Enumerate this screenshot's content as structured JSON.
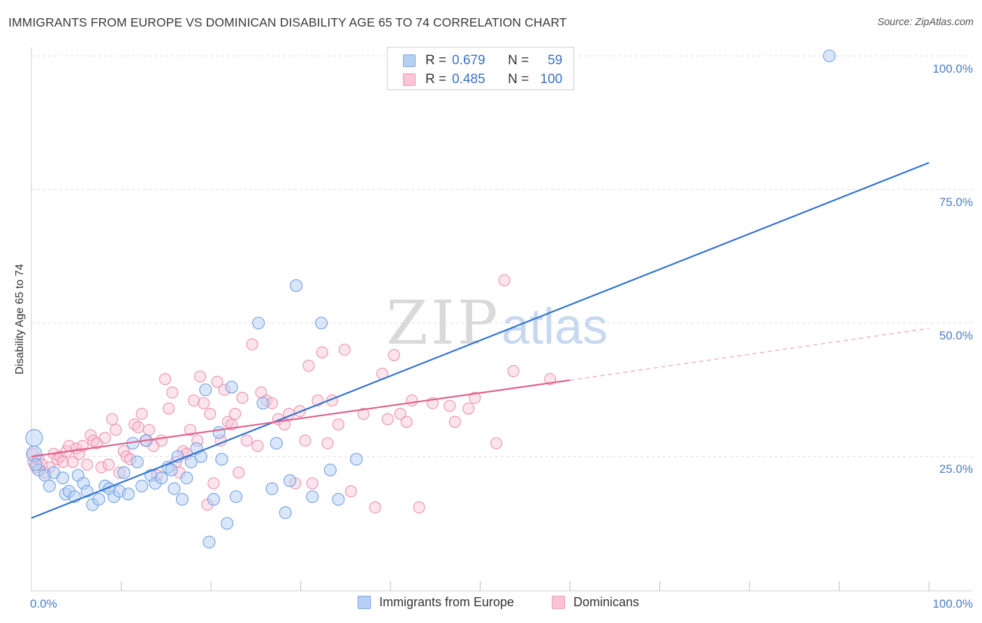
{
  "header": {
    "title": "IMMIGRANTS FROM EUROPE VS DOMINICAN DISABILITY AGE 65 TO 74 CORRELATION CHART",
    "source": "Source: ZipAtlas.com"
  },
  "legend": {
    "r_label": "R =",
    "n_label": "N =",
    "rows": [
      {
        "r": "0.679",
        "n": "59",
        "fill": "#b6d0f5",
        "stroke": "#7aa6e3"
      },
      {
        "r": "0.485",
        "n": "100",
        "fill": "#f9c4d4",
        "stroke": "#ee9ab4"
      }
    ]
  },
  "bottom_legend": [
    "Immigrants from Europe",
    "Dominicans"
  ],
  "watermark": {
    "zip": "ZIP",
    "atlas": "atlas"
  },
  "chart_data": {
    "type": "scatter",
    "title": "IMMIGRANTS FROM EUROPE VS DOMINICAN DISABILITY AGE 65 TO 74 CORRELATION CHART",
    "xlabel": "",
    "ylabel": "Disability Age 65 to 74",
    "xlim": [
      0,
      100
    ],
    "ylim": [
      0,
      100
    ],
    "x_tick_labels": [
      "0.0%",
      "100.0%"
    ],
    "y_tick_labels": [
      "25.0%",
      "50.0%",
      "75.0%",
      "100.0%"
    ],
    "grid": true,
    "colors": {
      "europe_fill": "#b6d0f5",
      "europe_stroke": "#6f9fe0",
      "europe_line": "#2f72d0",
      "dominican_fill": "#f9c4d4",
      "dominican_stroke": "#ec8fae",
      "dominican_line": "#e0608d"
    },
    "series": [
      {
        "name": "Immigrants from Europe",
        "r": 0.679,
        "n": 59,
        "trend": {
          "x0": 0,
          "y0": 13.5,
          "x1": 100,
          "y1": 80
        },
        "points": [
          [
            0.3,
            28.5
          ],
          [
            0.3,
            25.5
          ],
          [
            0.8,
            22.5
          ],
          [
            1.5,
            21.5
          ],
          [
            2,
            19.5
          ],
          [
            2.5,
            22
          ],
          [
            3.5,
            21
          ],
          [
            3.8,
            18
          ],
          [
            4.2,
            18.5
          ],
          [
            4.8,
            17.5
          ],
          [
            5.2,
            21.5
          ],
          [
            5.8,
            20
          ],
          [
            6.2,
            18.5
          ],
          [
            6.8,
            16
          ],
          [
            7.5,
            17
          ],
          [
            8.2,
            19.5
          ],
          [
            8.7,
            19
          ],
          [
            9.2,
            17.5
          ],
          [
            9.8,
            18.5
          ],
          [
            10.3,
            22
          ],
          [
            10.8,
            18
          ],
          [
            11.3,
            27.5
          ],
          [
            11.8,
            24
          ],
          [
            12.3,
            19.5
          ],
          [
            12.8,
            28
          ],
          [
            13.3,
            21.5
          ],
          [
            13.8,
            20
          ],
          [
            14.5,
            21
          ],
          [
            15.2,
            23
          ],
          [
            15.6,
            22.5
          ],
          [
            15.9,
            19
          ],
          [
            16.3,
            25
          ],
          [
            16.8,
            17
          ],
          [
            17.3,
            21
          ],
          [
            17.8,
            24
          ],
          [
            18.4,
            26.5
          ],
          [
            18.9,
            25
          ],
          [
            19.4,
            37.5
          ],
          [
            19.8,
            9
          ],
          [
            20.3,
            17
          ],
          [
            20.9,
            29.5
          ],
          [
            21.2,
            24.5
          ],
          [
            21.8,
            12.5
          ],
          [
            22.3,
            38
          ],
          [
            22.8,
            17.5
          ],
          [
            25.3,
            50
          ],
          [
            25.8,
            35
          ],
          [
            26.8,
            19
          ],
          [
            27.3,
            27.5
          ],
          [
            28.3,
            14.5
          ],
          [
            28.8,
            20.5
          ],
          [
            29.5,
            57
          ],
          [
            31.3,
            17.5
          ],
          [
            32.3,
            50
          ],
          [
            33.3,
            22.5
          ],
          [
            34.2,
            17
          ],
          [
            36.2,
            24.5
          ],
          [
            88.9,
            100
          ],
          [
            0.5,
            23.5
          ]
        ]
      },
      {
        "name": "Dominicans",
        "r": 0.485,
        "n": 100,
        "trend": {
          "x0": 0,
          "y0": 25,
          "x1": 60,
          "y1": 39.3
        },
        "trend_extension": {
          "x0": 60,
          "y0": 39.3,
          "x1": 100,
          "y1": 49
        },
        "points": [
          [
            0.2,
            25.5
          ],
          [
            0.2,
            24
          ],
          [
            0.5,
            23
          ],
          [
            0.8,
            24.5
          ],
          [
            1.2,
            23.5
          ],
          [
            1.5,
            22
          ],
          [
            2,
            23
          ],
          [
            2.5,
            25.5
          ],
          [
            2.9,
            24.5
          ],
          [
            3.2,
            25
          ],
          [
            3.5,
            24
          ],
          [
            3.9,
            26
          ],
          [
            4.2,
            27
          ],
          [
            4.6,
            24
          ],
          [
            5,
            26.5
          ],
          [
            5.3,
            25.5
          ],
          [
            5.7,
            27
          ],
          [
            6.2,
            23.5
          ],
          [
            6.6,
            29
          ],
          [
            6.9,
            28
          ],
          [
            7.3,
            27.5
          ],
          [
            7.8,
            23
          ],
          [
            8.2,
            28.5
          ],
          [
            8.6,
            23.5
          ],
          [
            9,
            32
          ],
          [
            9.4,
            30
          ],
          [
            9.8,
            22
          ],
          [
            10.3,
            26
          ],
          [
            10.6,
            25
          ],
          [
            11,
            24.5
          ],
          [
            11.5,
            31
          ],
          [
            11.9,
            30.5
          ],
          [
            12.3,
            33
          ],
          [
            12.7,
            28
          ],
          [
            13.1,
            30
          ],
          [
            13.6,
            27
          ],
          [
            14,
            21.5
          ],
          [
            14.5,
            28
          ],
          [
            14.9,
            39.5
          ],
          [
            15.3,
            34
          ],
          [
            15.7,
            37
          ],
          [
            16.1,
            24
          ],
          [
            16.5,
            22
          ],
          [
            16.9,
            26
          ],
          [
            17.3,
            25.5
          ],
          [
            17.7,
            30
          ],
          [
            18.1,
            35.5
          ],
          [
            18.5,
            28
          ],
          [
            18.8,
            40
          ],
          [
            19.2,
            35
          ],
          [
            19.6,
            16
          ],
          [
            19.9,
            33
          ],
          [
            20.3,
            20
          ],
          [
            20.7,
            39
          ],
          [
            21.1,
            28
          ],
          [
            21.5,
            37.5
          ],
          [
            21.9,
            31.5
          ],
          [
            22.3,
            31
          ],
          [
            22.7,
            33
          ],
          [
            23.1,
            22
          ],
          [
            23.5,
            36
          ],
          [
            24,
            28
          ],
          [
            24.6,
            46
          ],
          [
            25.2,
            27
          ],
          [
            25.6,
            37
          ],
          [
            26.2,
            35.5
          ],
          [
            26.8,
            35
          ],
          [
            27.5,
            32
          ],
          [
            28.2,
            31
          ],
          [
            28.7,
            33
          ],
          [
            29.4,
            20
          ],
          [
            29.9,
            33.5
          ],
          [
            30.5,
            28
          ],
          [
            30.9,
            42
          ],
          [
            31.3,
            20
          ],
          [
            31.9,
            35.5
          ],
          [
            32.4,
            44.5
          ],
          [
            33,
            27.5
          ],
          [
            33.5,
            35.5
          ],
          [
            34.2,
            31
          ],
          [
            34.9,
            45
          ],
          [
            35.6,
            18.5
          ],
          [
            37,
            33
          ],
          [
            38.3,
            15.5
          ],
          [
            39.1,
            40.5
          ],
          [
            39.7,
            32
          ],
          [
            40.4,
            44
          ],
          [
            41.1,
            33
          ],
          [
            41.8,
            31.5
          ],
          [
            42.4,
            35.5
          ],
          [
            43.2,
            15.5
          ],
          [
            44.7,
            35
          ],
          [
            46.6,
            34.5
          ],
          [
            47.2,
            31.5
          ],
          [
            48.7,
            34
          ],
          [
            49.4,
            36
          ],
          [
            51.8,
            27.5
          ],
          [
            52.7,
            58
          ],
          [
            53.7,
            41
          ],
          [
            57.8,
            39.5
          ]
        ]
      }
    ]
  }
}
